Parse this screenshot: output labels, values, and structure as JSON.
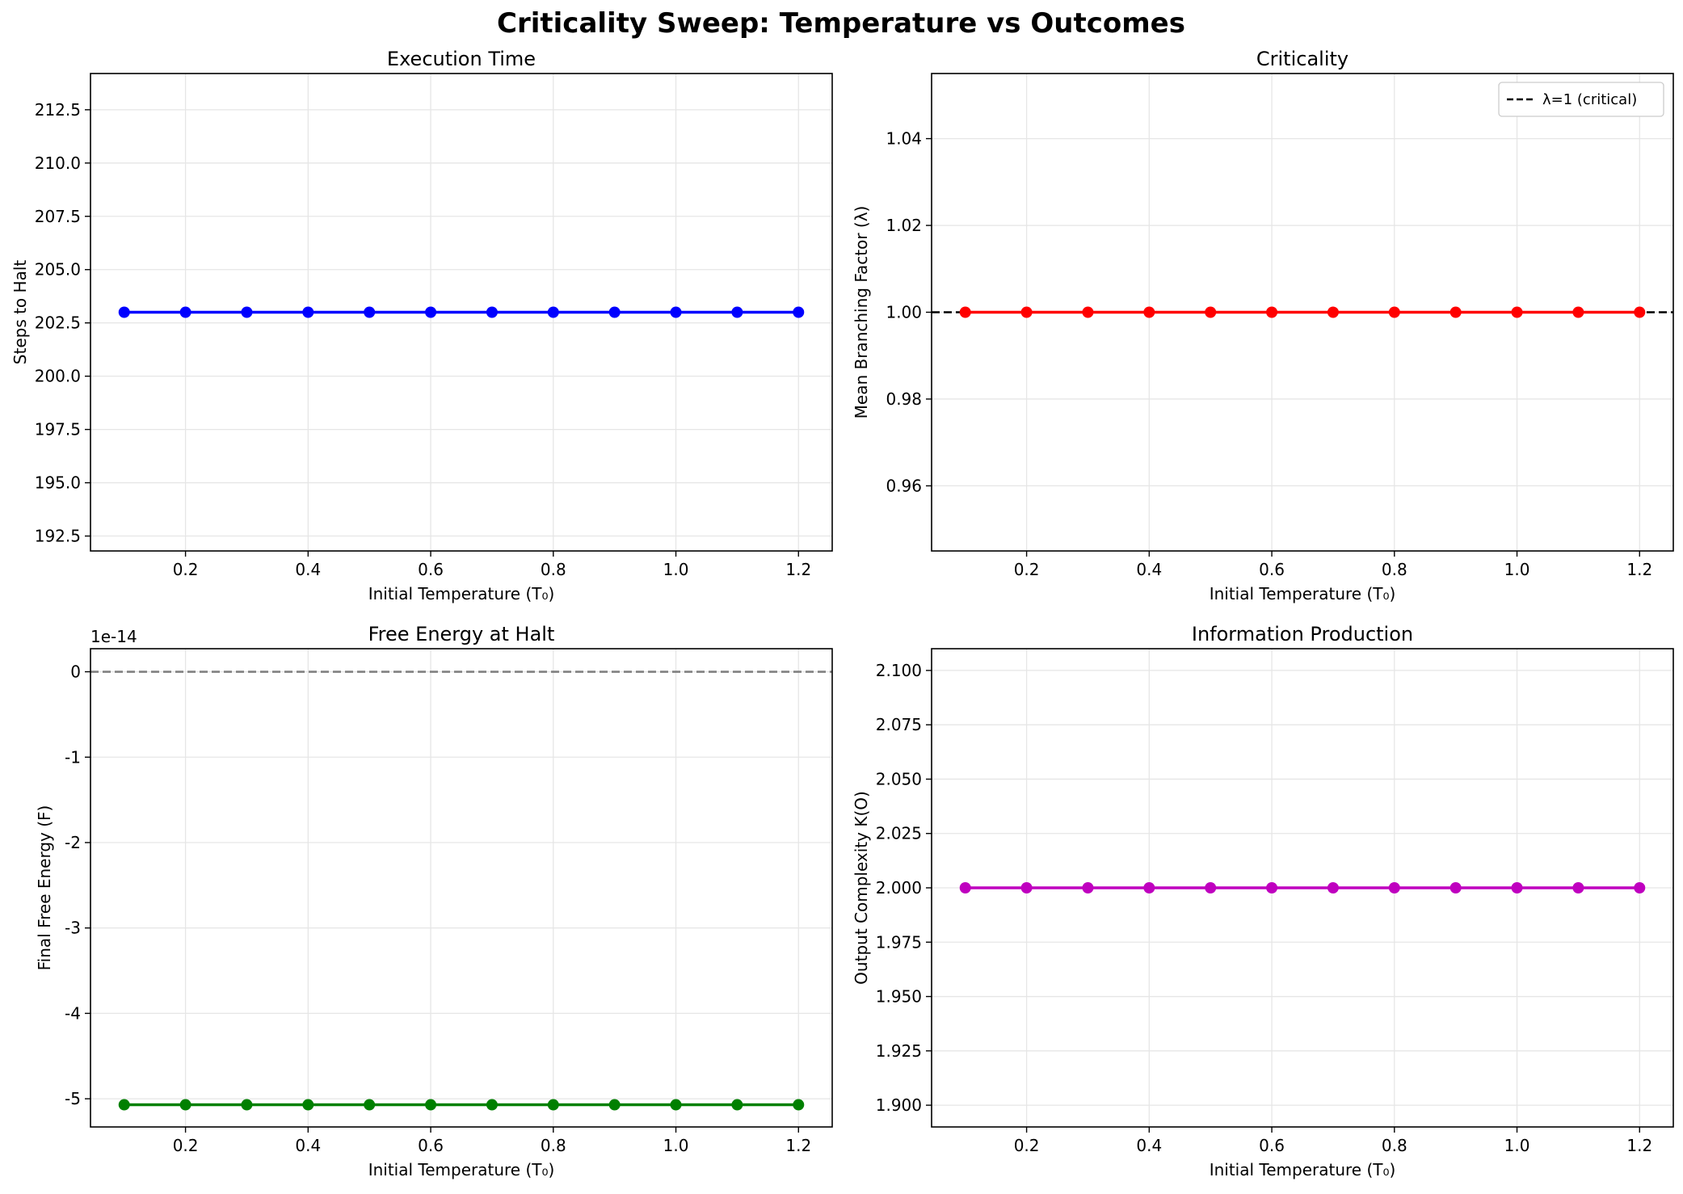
{
  "figure": {
    "suptitle": "Criticality Sweep: Temperature vs Outcomes"
  },
  "chart_data": [
    {
      "type": "line",
      "title": "Execution Time",
      "xlabel": "Initial Temperature (T₀)",
      "ylabel": "Steps to Halt",
      "xlim": [
        0.045,
        1.255
      ],
      "ylim": [
        191.8,
        214.2
      ],
      "xticks": [
        0.2,
        0.4,
        0.6,
        0.8,
        1.0,
        1.2
      ],
      "xtick_labels": [
        "0.2",
        "0.4",
        "0.6",
        "0.8",
        "1.0",
        "1.2"
      ],
      "yticks": [
        192.5,
        195.0,
        197.5,
        200.0,
        202.5,
        205.0,
        207.5,
        210.0,
        212.5
      ],
      "ytick_labels": [
        "192.5",
        "195.0",
        "197.5",
        "200.0",
        "202.5",
        "205.0",
        "207.5",
        "210.0",
        "212.5"
      ],
      "grid": true,
      "series": [
        {
          "color": "#0000ff",
          "marker": "circle",
          "x": [
            0.1,
            0.2,
            0.3,
            0.4,
            0.5,
            0.6,
            0.7,
            0.8,
            0.9,
            1.0,
            1.1,
            1.2
          ],
          "y": [
            203,
            203,
            203,
            203,
            203,
            203,
            203,
            203,
            203,
            203,
            203,
            203
          ]
        }
      ],
      "reference_lines": []
    },
    {
      "type": "line",
      "title": "Criticality",
      "xlabel": "Initial Temperature (T₀)",
      "ylabel": "Mean Branching Factor (λ)",
      "xlim": [
        0.045,
        1.255
      ],
      "ylim": [
        0.945,
        1.055
      ],
      "xticks": [
        0.2,
        0.4,
        0.6,
        0.8,
        1.0,
        1.2
      ],
      "xtick_labels": [
        "0.2",
        "0.4",
        "0.6",
        "0.8",
        "1.0",
        "1.2"
      ],
      "yticks": [
        0.96,
        0.98,
        1.0,
        1.02,
        1.04
      ],
      "ytick_labels": [
        "0.96",
        "0.98",
        "1.00",
        "1.02",
        "1.04"
      ],
      "grid": true,
      "series": [
        {
          "color": "#ff0000",
          "marker": "circle",
          "x": [
            0.1,
            0.2,
            0.3,
            0.4,
            0.5,
            0.6,
            0.7,
            0.8,
            0.9,
            1.0,
            1.1,
            1.2
          ],
          "y": [
            1.0,
            1.0,
            1.0,
            1.0,
            1.0,
            1.0,
            1.0,
            1.0,
            1.0,
            1.0,
            1.0,
            1.0
          ]
        }
      ],
      "reference_lines": [
        {
          "y": 1.0,
          "color": "#000000",
          "style": "dashed",
          "label": "λ=1 (critical)"
        }
      ],
      "legend": {
        "location": "top-right",
        "entries": [
          "λ=1 (critical)"
        ]
      }
    },
    {
      "type": "line",
      "title": "Free Energy at Halt",
      "xlabel": "Initial Temperature (T₀)",
      "ylabel": "Final Free Energy (F)",
      "offset_text": "1e-14",
      "xlim": [
        0.045,
        1.255
      ],
      "ylim": [
        -5.33,
        0.27
      ],
      "xticks": [
        0.2,
        0.4,
        0.6,
        0.8,
        1.0,
        1.2
      ],
      "xtick_labels": [
        "0.2",
        "0.4",
        "0.6",
        "0.8",
        "1.0",
        "1.2"
      ],
      "yticks": [
        -5,
        -4,
        -3,
        -2,
        -1,
        0
      ],
      "ytick_labels": [
        "-5",
        "-4",
        "-3",
        "-2",
        "-1",
        "0"
      ],
      "grid": true,
      "series": [
        {
          "color": "#008000",
          "marker": "circle",
          "x": [
            0.1,
            0.2,
            0.3,
            0.4,
            0.5,
            0.6,
            0.7,
            0.8,
            0.9,
            1.0,
            1.1,
            1.2
          ],
          "y": [
            -5.07,
            -5.07,
            -5.07,
            -5.07,
            -5.07,
            -5.07,
            -5.07,
            -5.07,
            -5.07,
            -5.07,
            -5.07,
            -5.07
          ]
        }
      ],
      "reference_lines": [
        {
          "y": 0,
          "color": "#808080",
          "style": "dashed"
        }
      ]
    },
    {
      "type": "line",
      "title": "Information Production",
      "xlabel": "Initial Temperature (T₀)",
      "ylabel": "Output Complexity K(O)",
      "xlim": [
        0.045,
        1.255
      ],
      "ylim": [
        1.89,
        2.11
      ],
      "xticks": [
        0.2,
        0.4,
        0.6,
        0.8,
        1.0,
        1.2
      ],
      "xtick_labels": [
        "0.2",
        "0.4",
        "0.6",
        "0.8",
        "1.0",
        "1.2"
      ],
      "yticks": [
        1.9,
        1.925,
        1.95,
        1.975,
        2.0,
        2.025,
        2.05,
        2.075,
        2.1
      ],
      "ytick_labels": [
        "1.900",
        "1.925",
        "1.950",
        "1.975",
        "2.000",
        "2.025",
        "2.050",
        "2.075",
        "2.100"
      ],
      "grid": true,
      "series": [
        {
          "color": "#bf00bf",
          "marker": "circle",
          "x": [
            0.1,
            0.2,
            0.3,
            0.4,
            0.5,
            0.6,
            0.7,
            0.8,
            0.9,
            1.0,
            1.1,
            1.2
          ],
          "y": [
            2.0,
            2.0,
            2.0,
            2.0,
            2.0,
            2.0,
            2.0,
            2.0,
            2.0,
            2.0,
            2.0,
            2.0
          ]
        }
      ],
      "reference_lines": []
    }
  ]
}
